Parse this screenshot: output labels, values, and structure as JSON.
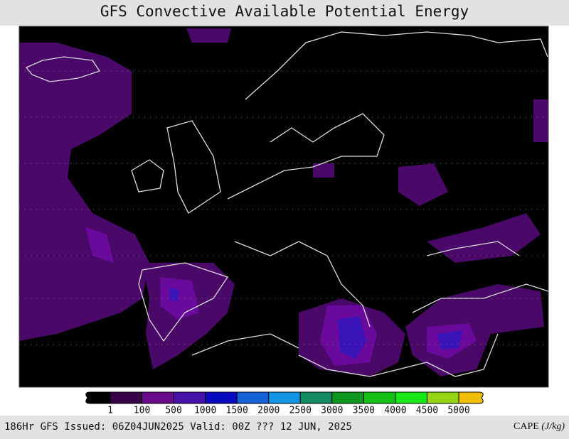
{
  "header": {
    "title": "GFS Convective Available Potential Energy"
  },
  "colorbar": {
    "levels": [
      1,
      100,
      500,
      1000,
      1500,
      2000,
      2500,
      3000,
      3500,
      4000,
      4500,
      5000
    ],
    "colors": [
      "#000000",
      "#3a0048",
      "#6a0a8c",
      "#4612a8",
      "#0a0ac0",
      "#1462d8",
      "#1494e4",
      "#128a64",
      "#10981e",
      "#14c014",
      "#18e818",
      "#96d414",
      "#f0c000"
    ]
  },
  "footer": {
    "left": "186Hr GFS Issued: 06Z04JUN2025 Valid: 00Z ??? 12 JUN, 2025",
    "right_label": "CAPE",
    "right_units": "(J/kg)"
  }
}
